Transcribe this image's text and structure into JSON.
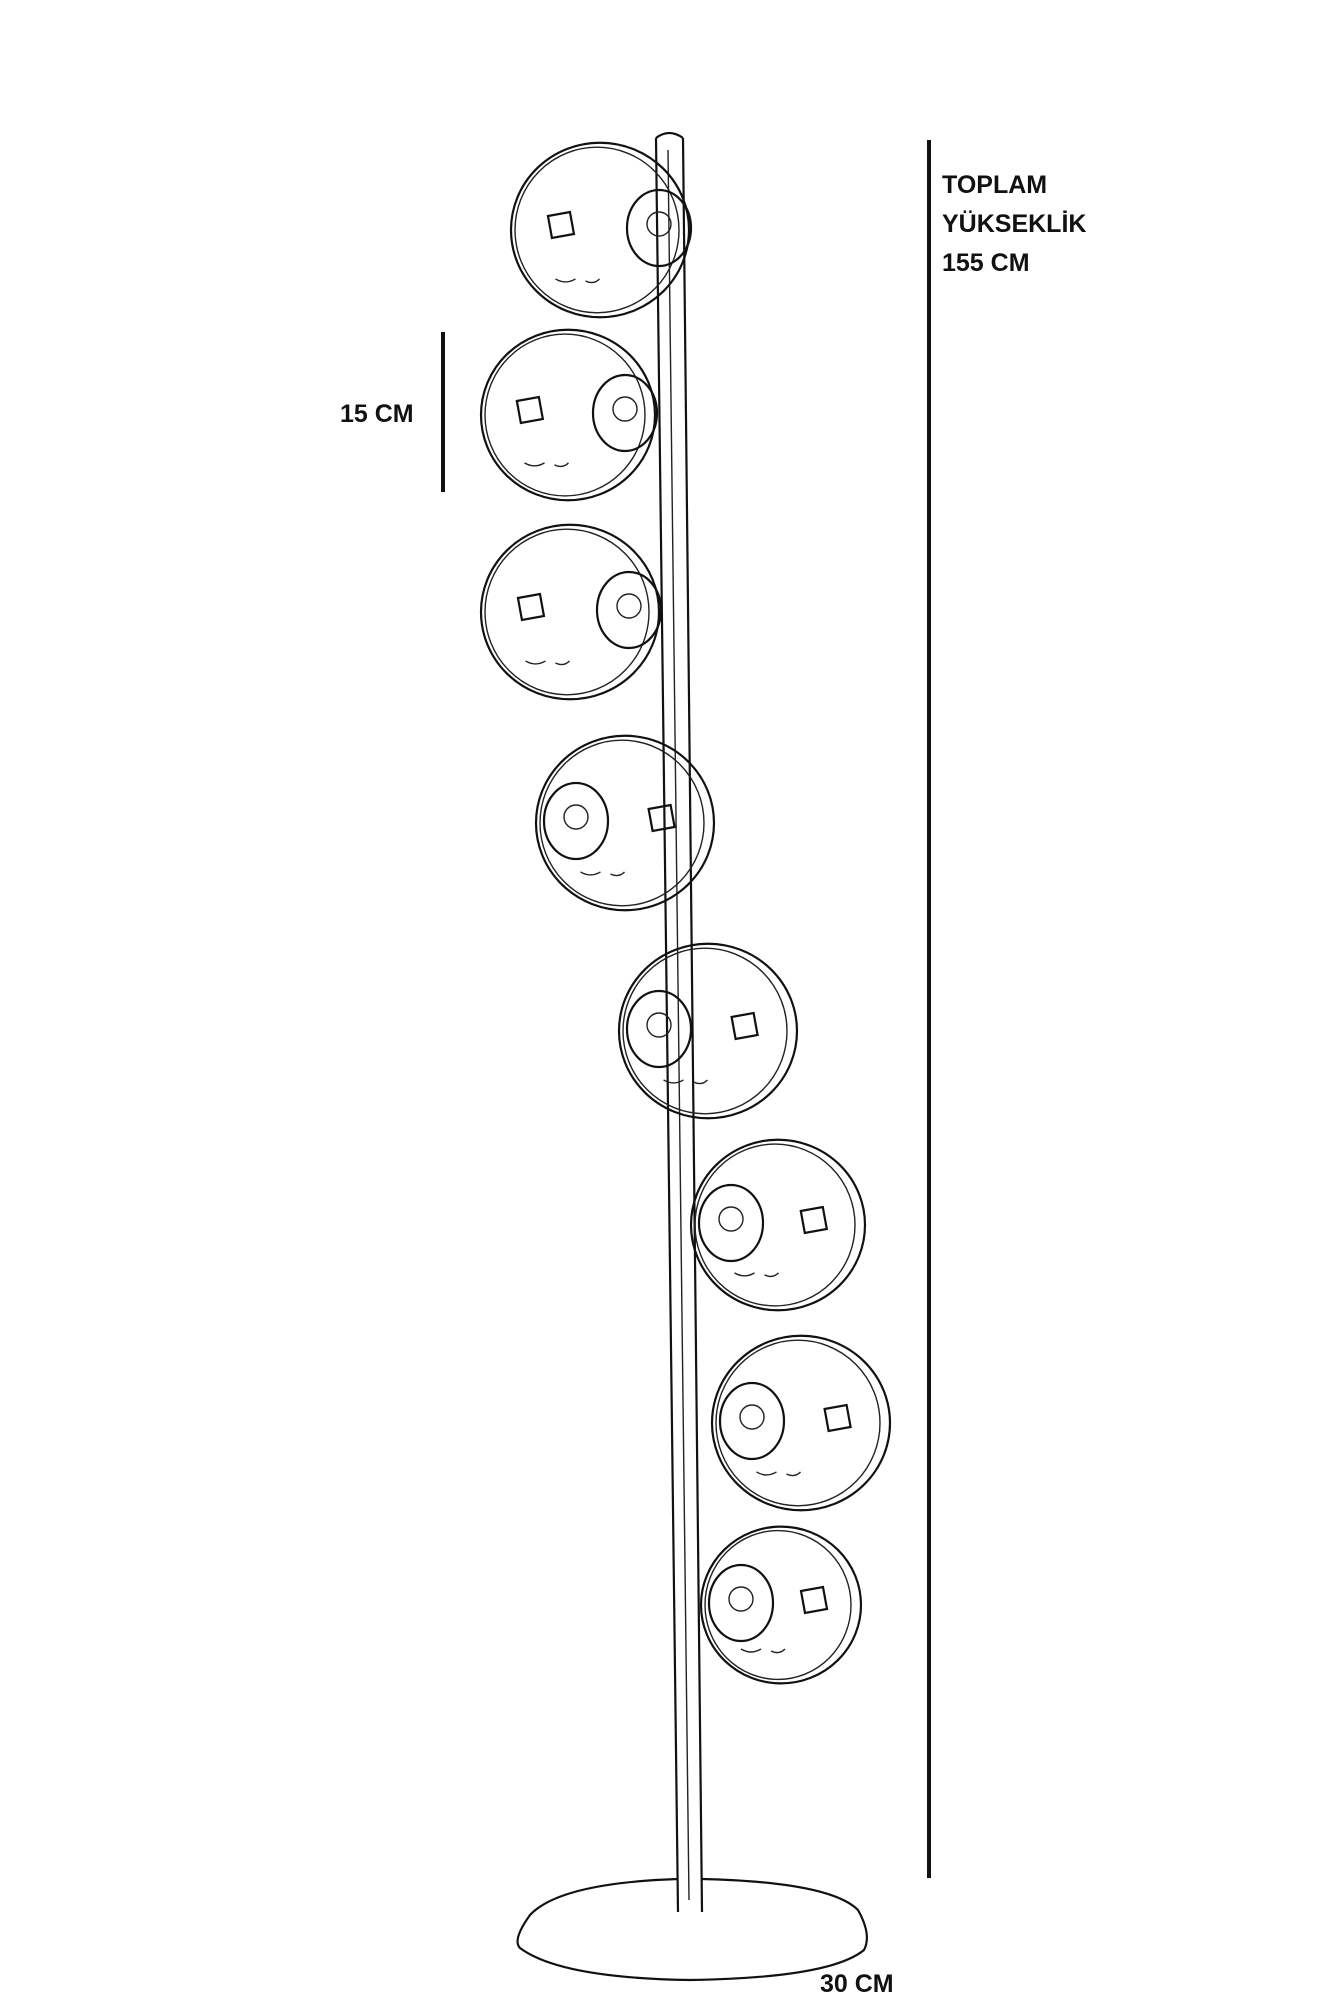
{
  "dimensions": {
    "total_height": {
      "lines": [
        "TOPLAM",
        "YÜKSEKLİK",
        "155 CM"
      ]
    },
    "globe_diameter": "15 CM",
    "base_diameter": "30 CM"
  },
  "drawing": {
    "globe_count": 8,
    "line_color": "#111111",
    "background": "#ffffff"
  }
}
